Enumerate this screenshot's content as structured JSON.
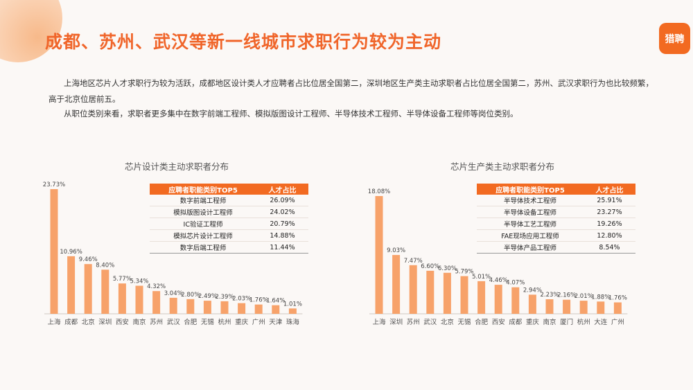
{
  "page": {
    "title": "成都、苏州、武汉等新一线城市求职行为较为主动",
    "logo_text": "猎聘",
    "para1": "上海地区芯片人才求职行为较为活跃，成都地区设计类人才应聘者占比位居全国第二，深圳地区生产类主动求职者占比位居全国第二，苏州、武汉求职行为也比较频繁，高于北京位居前五。",
    "para2": "从职位类别来看，求职者更多集中在数字前端工程师、模拟版图设计工程师、半导体技术工程师、半导体设备工程师等岗位类别。"
  },
  "colors": {
    "accent": "#f0652a",
    "bar": "#f7a26a",
    "table_header": "#f26a21"
  },
  "chart_data": [
    {
      "type": "bar",
      "title": "芯片设计类主动求职者分布",
      "categories": [
        "上海",
        "成都",
        "北京",
        "深圳",
        "西安",
        "南京",
        "苏州",
        "武汉",
        "合肥",
        "无锡",
        "杭州",
        "重庆",
        "广州",
        "天津",
        "珠海"
      ],
      "values": [
        23.73,
        10.96,
        9.46,
        8.4,
        5.77,
        5.34,
        4.32,
        3.04,
        2.8,
        2.49,
        2.39,
        2.03,
        1.76,
        1.64,
        1.01
      ],
      "labels": [
        "23.73%",
        "10.96%",
        "9.46%",
        "8.40%",
        "5.77%",
        "5.34%",
        "4.32%",
        "3.04%",
        "2.80%",
        "2.49%",
        "2.39%",
        "2.03%",
        "1.76%",
        "1.64%",
        "1.01%"
      ],
      "ylim": [
        0,
        25
      ],
      "table": {
        "headers": [
          "应聘者职能类别TOP5",
          "人才占比"
        ],
        "rows": [
          [
            "数字前端工程师",
            "26.09%"
          ],
          [
            "模拟版图设计工程师",
            "24.02%"
          ],
          [
            "IC验证工程师",
            "20.79%"
          ],
          [
            "模拟芯片设计工程师",
            "14.88%"
          ],
          [
            "数字后端工程师",
            "11.44%"
          ]
        ]
      }
    },
    {
      "type": "bar",
      "title": "芯片生产类主动求职者分布",
      "categories": [
        "上海",
        "深圳",
        "苏州",
        "武汉",
        "北京",
        "无锡",
        "合肥",
        "西安",
        "成都",
        "重庆",
        "南京",
        "厦门",
        "杭州",
        "大连",
        "广州"
      ],
      "values": [
        18.08,
        9.03,
        7.47,
        6.6,
        6.3,
        5.79,
        5.01,
        4.46,
        4.07,
        2.94,
        2.23,
        2.16,
        2.01,
        1.88,
        1.76
      ],
      "labels": [
        "18.08%",
        "9.03%",
        "7.47%",
        "6.60%",
        "6.30%",
        "5.79%",
        "5.01%",
        "4.46%",
        "4.07%",
        "2.94%",
        "2.23%",
        "2.16%",
        "2.01%",
        "1.88%",
        "1.76%"
      ],
      "ylim": [
        0,
        19
      ],
      "table": {
        "headers": [
          "应聘者职能类别TOP5",
          "人才占比"
        ],
        "rows": [
          [
            "半导体技术工程师",
            "25.91%"
          ],
          [
            "半导体设备工程师",
            "23.27%"
          ],
          [
            "半导体工艺工程师",
            "19.26%"
          ],
          [
            "FAE现场应用工程师",
            "12.80%"
          ],
          [
            "半导体产品工程师",
            "8.54%"
          ]
        ]
      }
    }
  ]
}
